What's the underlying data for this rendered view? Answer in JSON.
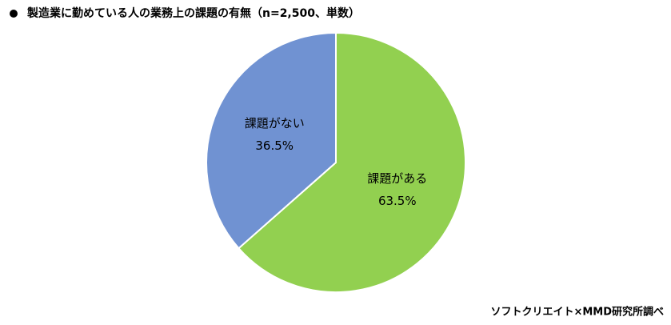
{
  "chart_data": {
    "type": "pie",
    "title": "製造業に勤めている人の業務上の課題の有無（n=2,500、単数）",
    "source": "ソフトクリエイト×MMD研究所調べ",
    "categories": [
      "課題がある",
      "課題がない"
    ],
    "values": [
      63.5,
      36.5
    ],
    "value_labels": [
      "63.5%",
      "36.5%"
    ],
    "colors": [
      "#92d050",
      "#7092d2"
    ]
  }
}
